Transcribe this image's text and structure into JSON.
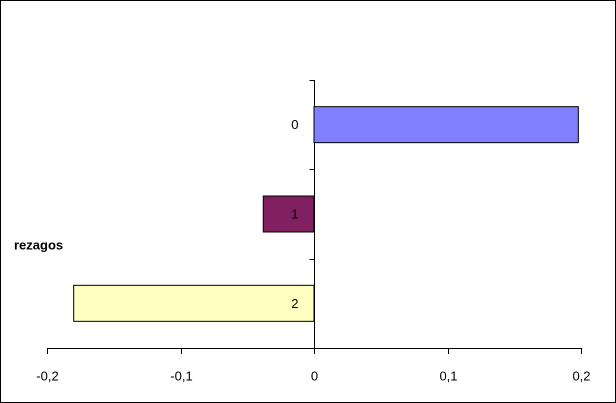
{
  "chart_data": {
    "type": "barh",
    "ylabel": "rezagos",
    "categories": [
      "0",
      "1",
      "2"
    ],
    "series": [
      {
        "name": null,
        "colors": [
          "#8080ff",
          "#802060",
          "#ffffc0"
        ],
        "values": [
          0.198,
          -0.038,
          -0.18
        ]
      }
    ],
    "xlim": [
      -0.2,
      0.2
    ],
    "xticks": [
      {
        "value": -0.2,
        "label": "-0,2"
      },
      {
        "value": -0.1,
        "label": "-0,1"
      },
      0,
      {
        "value": 0.1,
        "label": "0,1"
      },
      {
        "value": 0.2,
        "label": "0,2"
      }
    ],
    "grid": false
  }
}
